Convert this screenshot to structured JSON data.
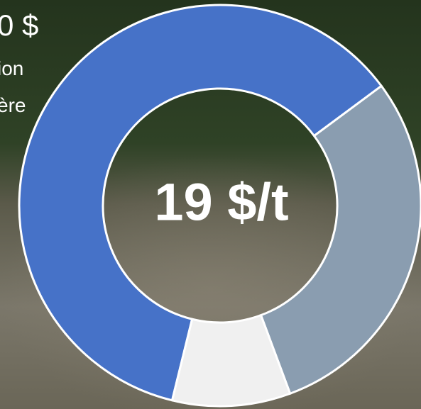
{
  "chart_data": {
    "type": "donut",
    "center_label": "19 $/t",
    "values": [
      61,
      29.5,
      9.5
    ],
    "colors": [
      "#4672c8",
      "#8a9db0",
      "#f0f0f0"
    ],
    "annotations": [
      "0 $",
      "ion",
      "ère"
    ]
  }
}
